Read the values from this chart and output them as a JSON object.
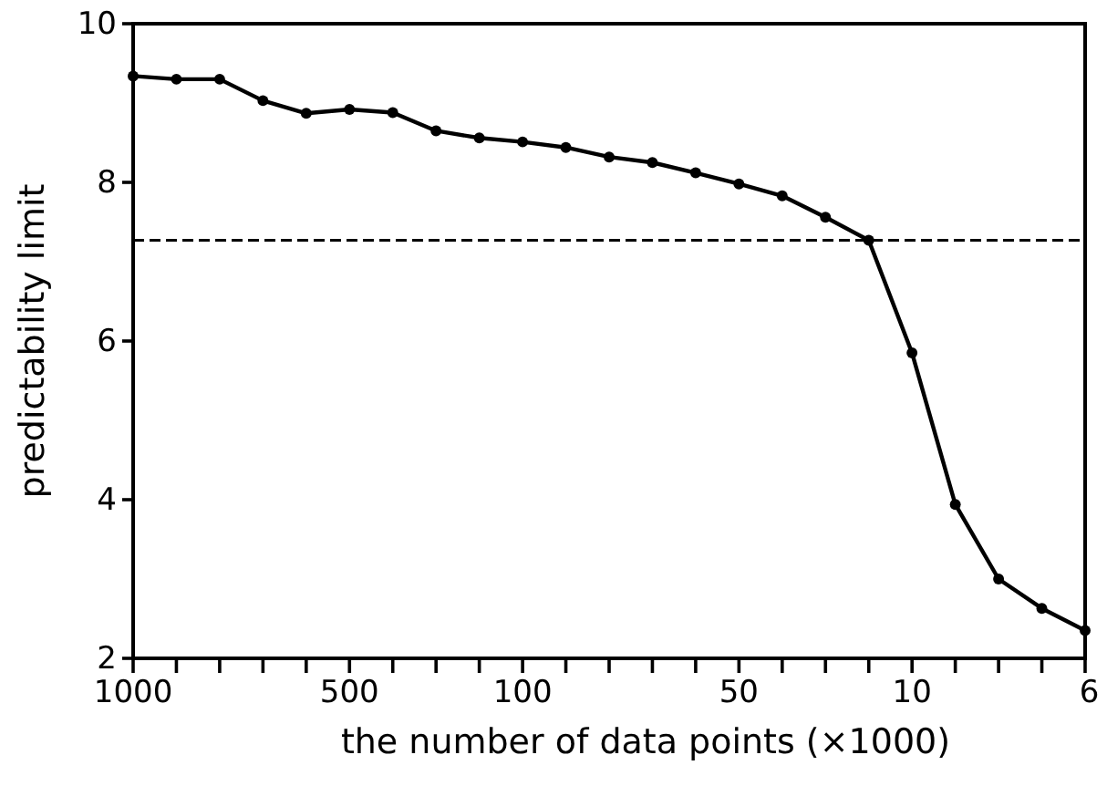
{
  "chart_data": {
    "type": "line",
    "xlabel": "the number of data points (×1000)",
    "ylabel": "predictability limit",
    "categories": [
      "1000",
      null,
      null,
      null,
      null,
      "500",
      null,
      null,
      null,
      "100",
      null,
      null,
      null,
      null,
      "50",
      null,
      null,
      null,
      "10",
      null,
      null,
      null,
      "6"
    ],
    "series": [
      {
        "color": "#000000",
        "values": [
          9.34,
          9.3,
          9.3,
          9.03,
          8.87,
          8.92,
          8.88,
          8.65,
          8.56,
          8.51,
          8.44,
          8.32,
          8.25,
          8.12,
          7.98,
          7.83,
          7.56,
          7.27,
          5.85,
          3.94,
          3.0,
          2.63,
          2.35
        ]
      }
    ],
    "ylim": [
      2,
      10
    ],
    "yticks": [
      2,
      4,
      6,
      8,
      10
    ],
    "ref_lines": [
      {
        "axis": "y",
        "value": 7.27,
        "line_style": "dashed",
        "color": "#000000"
      }
    ],
    "marker": "circle",
    "line_style": "solid",
    "grid": false,
    "legend": false
  }
}
